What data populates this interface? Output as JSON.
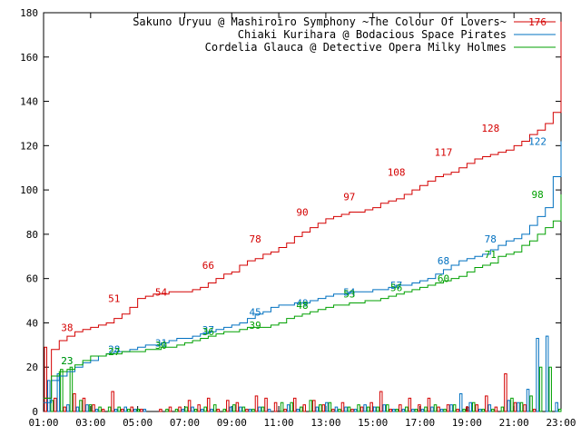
{
  "chart_data": {
    "type": "line",
    "title": "",
    "xlabel": "",
    "ylabel": "",
    "ylim": [
      0,
      180
    ],
    "y_ticks": [
      0,
      20,
      40,
      60,
      80,
      100,
      120,
      140,
      160,
      180
    ],
    "xlim": [
      "01:00",
      "23:00"
    ],
    "x_ticks": [
      "01:00",
      "03:00",
      "05:00",
      "07:00",
      "09:00",
      "11:00",
      "13:00",
      "15:00",
      "17:00",
      "19:00",
      "21:00",
      "23:00"
    ],
    "grid": false,
    "legend_position": "top-right",
    "series": [
      {
        "name": "Sakuno Uryuu @ Mashiroiro Symphony ~The Colour Of Lovers~",
        "color": "#d40000",
        "cumulative_x": [
          "01:00",
          "01:20",
          "01:40",
          "02:00",
          "02:20",
          "02:40",
          "03:00",
          "03:20",
          "03:40",
          "04:00",
          "04:20",
          "04:40",
          "05:00",
          "05:20",
          "05:40",
          "06:00",
          "06:20",
          "06:40",
          "07:00",
          "07:20",
          "07:40",
          "08:00",
          "08:20",
          "08:40",
          "09:00",
          "09:20",
          "09:40",
          "10:00",
          "10:20",
          "10:40",
          "11:00",
          "11:20",
          "11:40",
          "12:00",
          "12:20",
          "12:40",
          "13:00",
          "13:20",
          "13:40",
          "14:00",
          "14:20",
          "14:40",
          "15:00",
          "15:20",
          "15:40",
          "16:00",
          "16:20",
          "16:40",
          "17:00",
          "17:20",
          "17:40",
          "18:00",
          "18:20",
          "18:40",
          "19:00",
          "19:20",
          "19:40",
          "20:00",
          "20:20",
          "20:40",
          "21:00",
          "21:20",
          "21:40",
          "22:00",
          "22:20",
          "22:40",
          "23:00"
        ],
        "cumulative_y": [
          6,
          28,
          32,
          34,
          36,
          37,
          38,
          39,
          40,
          42,
          44,
          47,
          51,
          52,
          53,
          53,
          54,
          54,
          54,
          55,
          56,
          58,
          60,
          62,
          63,
          66,
          68,
          69,
          71,
          72,
          74,
          76,
          79,
          81,
          83,
          85,
          87,
          88,
          89,
          90,
          90,
          91,
          92,
          94,
          95,
          96,
          98,
          100,
          102,
          104,
          106,
          107,
          108,
          110,
          112,
          114,
          115,
          116,
          117,
          118,
          120,
          122,
          125,
          127,
          130,
          135,
          176
        ],
        "labels": [
          {
            "x": "02:00",
            "y": 38,
            "text": "38"
          },
          {
            "x": "04:00",
            "y": 51,
            "text": "51"
          },
          {
            "x": "06:00",
            "y": 54,
            "text": "54"
          },
          {
            "x": "08:00",
            "y": 66,
            "text": "66"
          },
          {
            "x": "10:00",
            "y": 78,
            "text": "78"
          },
          {
            "x": "12:00",
            "y": 90,
            "text": "90"
          },
          {
            "x": "14:00",
            "y": 97,
            "text": "97"
          },
          {
            "x": "16:00",
            "y": 108,
            "text": "108"
          },
          {
            "x": "18:00",
            "y": 117,
            "text": "117"
          },
          {
            "x": "20:00",
            "y": 128,
            "text": "128"
          },
          {
            "x": "22:00",
            "y": 176,
            "text": "176"
          }
        ],
        "bars": [
          29,
          6,
          2,
          8,
          6,
          3,
          1,
          9,
          1,
          2,
          1,
          0,
          1,
          2,
          2,
          5,
          3,
          6,
          1,
          5,
          4,
          1,
          7,
          6,
          4,
          1,
          6,
          3,
          5,
          3,
          1,
          4,
          1,
          2,
          4,
          9,
          1,
          3,
          6,
          3,
          6,
          2,
          3,
          1,
          2,
          3,
          7,
          2,
          17,
          4,
          3,
          1,
          0,
          0
        ]
      },
      {
        "name": "Chiaki Kurihara @ Bodacious Space Pirates",
        "color": "#0070c0",
        "cumulative_x": [
          "01:00",
          "01:20",
          "01:40",
          "02:00",
          "02:20",
          "02:40",
          "03:00",
          "03:20",
          "03:40",
          "04:00",
          "04:20",
          "04:40",
          "05:00",
          "05:20",
          "05:40",
          "06:00",
          "06:20",
          "06:40",
          "07:00",
          "07:20",
          "07:40",
          "08:00",
          "08:20",
          "08:40",
          "09:00",
          "09:20",
          "09:40",
          "10:00",
          "10:20",
          "10:40",
          "11:00",
          "11:20",
          "11:40",
          "12:00",
          "12:20",
          "12:40",
          "13:00",
          "13:20",
          "13:40",
          "14:00",
          "14:20",
          "14:40",
          "15:00",
          "15:20",
          "15:40",
          "16:00",
          "16:20",
          "16:40",
          "17:00",
          "17:20",
          "17:40",
          "18:00",
          "18:20",
          "18:40",
          "19:00",
          "19:20",
          "19:40",
          "20:00",
          "20:20",
          "20:40",
          "21:00",
          "21:20",
          "21:40",
          "22:00",
          "22:20",
          "22:40",
          "23:00"
        ],
        "cumulative_y": [
          4,
          14,
          16,
          18,
          20,
          22,
          23,
          25,
          26,
          27,
          27,
          28,
          29,
          30,
          30,
          31,
          32,
          33,
          33,
          34,
          35,
          36,
          37,
          38,
          39,
          40,
          42,
          44,
          45,
          47,
          48,
          48,
          49,
          49,
          50,
          51,
          52,
          53,
          53,
          54,
          54,
          54,
          55,
          55,
          56,
          57,
          57,
          58,
          59,
          60,
          62,
          64,
          66,
          68,
          69,
          70,
          71,
          73,
          75,
          77,
          78,
          80,
          84,
          88,
          92,
          106,
          122
        ],
        "labels": [
          {
            "x": "02:00",
            "y": 23,
            "text": "23"
          },
          {
            "x": "04:00",
            "y": 28,
            "text": "28"
          },
          {
            "x": "06:00",
            "y": 31,
            "text": "31"
          },
          {
            "x": "08:00",
            "y": 37,
            "text": "37"
          },
          {
            "x": "10:00",
            "y": 45,
            "text": "45"
          },
          {
            "x": "12:00",
            "y": 49,
            "text": "49"
          },
          {
            "x": "14:00",
            "y": 54,
            "text": "54"
          },
          {
            "x": "16:00",
            "y": 57,
            "text": "57"
          },
          {
            "x": "18:00",
            "y": 68,
            "text": "68"
          },
          {
            "x": "20:00",
            "y": 78,
            "text": "78"
          },
          {
            "x": "22:00",
            "y": 122,
            "text": "122"
          }
        ],
        "bars": [
          14,
          17,
          3,
          2,
          3,
          1,
          0,
          1,
          2,
          1,
          1,
          0,
          0,
          0,
          1,
          2,
          1,
          1,
          0,
          2,
          2,
          1,
          2,
          1,
          0,
          3,
          1,
          0,
          2,
          4,
          2,
          2,
          1,
          3,
          2,
          3,
          1,
          1,
          1,
          1,
          2,
          1,
          3,
          8,
          4,
          1,
          3,
          0,
          5,
          4,
          10,
          33,
          34,
          4
        ]
      },
      {
        "name": "Cordelia Glauca @ Detective Opera Milky Holmes",
        "color": "#00a000",
        "cumulative_x": [
          "01:00",
          "01:20",
          "01:40",
          "02:00",
          "02:20",
          "02:40",
          "03:00",
          "03:20",
          "03:40",
          "04:00",
          "04:20",
          "04:40",
          "05:00",
          "05:20",
          "05:40",
          "06:00",
          "06:20",
          "06:40",
          "07:00",
          "07:20",
          "07:40",
          "08:00",
          "08:20",
          "08:40",
          "09:00",
          "09:20",
          "09:40",
          "10:00",
          "10:20",
          "10:40",
          "11:00",
          "11:20",
          "11:40",
          "12:00",
          "12:20",
          "12:40",
          "13:00",
          "13:20",
          "13:40",
          "14:00",
          "14:20",
          "14:40",
          "15:00",
          "15:20",
          "15:40",
          "16:00",
          "16:20",
          "16:40",
          "17:00",
          "17:20",
          "17:40",
          "18:00",
          "18:20",
          "18:40",
          "19:00",
          "19:20",
          "19:40",
          "20:00",
          "20:20",
          "20:40",
          "21:00",
          "21:20",
          "21:40",
          "22:00",
          "22:20",
          "22:40",
          "23:00"
        ],
        "cumulative_y": [
          6,
          16,
          18,
          19,
          21,
          23,
          25,
          25,
          26,
          26,
          27,
          27,
          27,
          28,
          28,
          29,
          29,
          30,
          31,
          32,
          33,
          34,
          35,
          36,
          36,
          37,
          38,
          38,
          38,
          39,
          40,
          42,
          43,
          44,
          45,
          46,
          47,
          48,
          48,
          49,
          49,
          50,
          50,
          51,
          52,
          53,
          54,
          55,
          56,
          57,
          58,
          59,
          60,
          61,
          63,
          65,
          66,
          67,
          70,
          71,
          72,
          75,
          77,
          80,
          83,
          86,
          98
        ],
        "labels": [
          {
            "x": "02:00",
            "y": 23,
            "text": "23"
          },
          {
            "x": "04:00",
            "y": 27,
            "text": "27"
          },
          {
            "x": "06:00",
            "y": 30,
            "text": "30"
          },
          {
            "x": "08:00",
            "y": 36,
            "text": "36"
          },
          {
            "x": "10:00",
            "y": 39,
            "text": "39"
          },
          {
            "x": "12:00",
            "y": 48,
            "text": "48"
          },
          {
            "x": "14:00",
            "y": 53,
            "text": "53"
          },
          {
            "x": "16:00",
            "y": 56,
            "text": "56"
          },
          {
            "x": "18:00",
            "y": 60,
            "text": "60"
          },
          {
            "x": "20:00",
            "y": 71,
            "text": "71"
          },
          {
            "x": "22:00",
            "y": 98,
            "text": "98"
          }
        ],
        "bars": [
          5,
          19,
          20,
          5,
          3,
          2,
          2,
          2,
          1,
          1,
          0,
          0,
          1,
          1,
          2,
          1,
          2,
          3,
          1,
          3,
          2,
          1,
          2,
          0,
          4,
          4,
          2,
          5,
          3,
          4,
          1,
          2,
          3,
          2,
          2,
          3,
          1,
          2,
          1,
          2,
          3,
          1,
          3,
          1,
          4,
          1,
          1,
          2,
          6,
          4,
          7,
          20,
          20,
          1
        ]
      }
    ]
  }
}
